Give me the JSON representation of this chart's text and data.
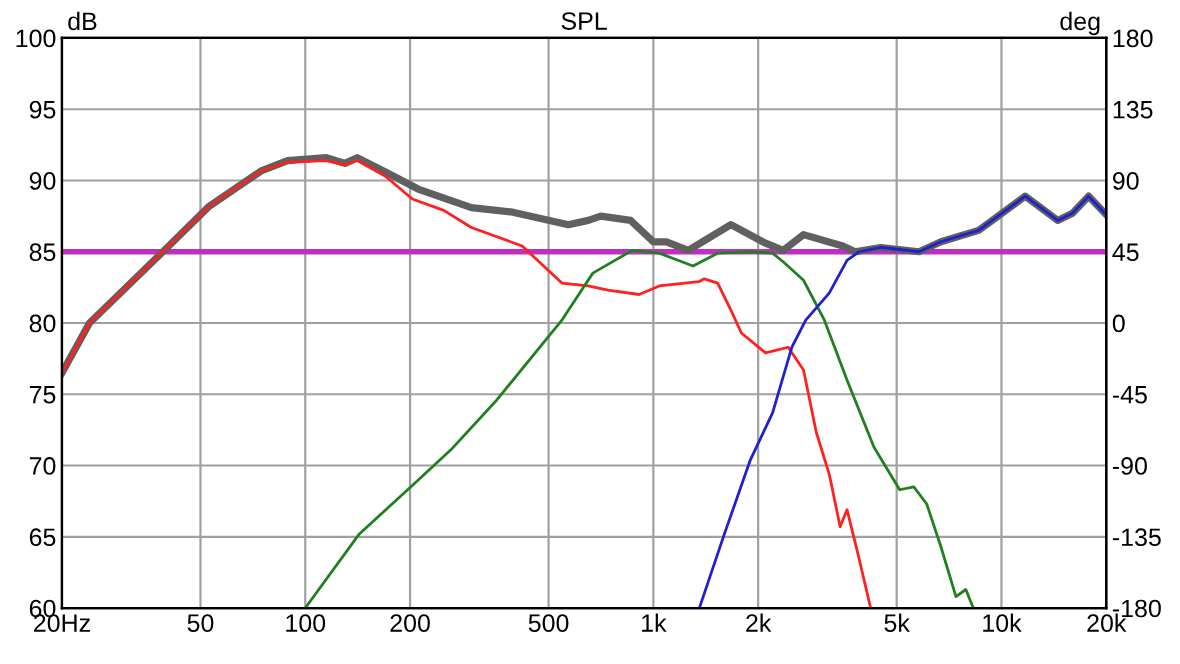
{
  "chart_data": {
    "type": "line",
    "title": "SPL",
    "ylabel": "dB",
    "y2label": "deg",
    "log": "x",
    "xlim": [
      20,
      20000
    ],
    "xticks": [
      {
        "value": 20,
        "label": "20Hz"
      },
      50,
      100,
      200,
      500,
      {
        "value": 1000,
        "label": "1k"
      },
      {
        "value": 2000,
        "label": "2k"
      },
      {
        "value": 5000,
        "label": "5k"
      },
      {
        "value": 10000,
        "label": "10k"
      },
      {
        "value": 20000,
        "label": "20k"
      }
    ],
    "ylim": [
      60,
      100
    ],
    "yticks": [
      60,
      65,
      70,
      75,
      80,
      85,
      90,
      95,
      100
    ],
    "y2lim": [
      -180,
      180
    ],
    "y2ticks": [
      -180,
      -135,
      -90,
      -45,
      0,
      45,
      90,
      135,
      180
    ],
    "grid": true,
    "ref_lines": [
      {
        "axis": "y",
        "value": 85,
        "color": "#c030c0"
      }
    ],
    "series": [
      {
        "color": "#ff2020",
        "x": [
          20,
          24,
          39,
          53,
          75,
          89,
          115,
          130,
          141,
          170,
          203,
          250,
          300,
          420,
          546,
          650,
          740,
          910,
          1040,
          1350,
          1400,
          1530,
          1670,
          1790,
          2100,
          2440,
          2700,
          2940,
          3200,
          3440,
          3600,
          3870,
          4200
        ],
        "values": [
          76.5,
          80,
          85,
          88.2,
          90.7,
          91.3,
          91.4,
          91.1,
          91.4,
          90.3,
          88.7,
          87.9,
          86.7,
          85.4,
          82.8,
          82.6,
          82.3,
          82.0,
          82.6,
          82.9,
          83.1,
          82.8,
          80.9,
          79.3,
          77.9,
          78.3,
          76.7,
          72.3,
          69.4,
          65.7,
          66.9,
          63.8,
          60.1
        ]
      },
      {
        "color": "#208020",
        "x": [
          100,
          143,
          203,
          262,
          355,
          546,
          570,
          670,
          870,
          1040,
          1300,
          1530,
          1900,
          2200,
          2360,
          2700,
          3100,
          3600,
          4300,
          5100,
          5600,
          6100,
          6700,
          7400,
          7900,
          8300
        ],
        "values": [
          60,
          65.2,
          68.6,
          71.1,
          74.6,
          80.2,
          80.9,
          83.5,
          85.1,
          84.9,
          84.0,
          84.9,
          85.0,
          84.9,
          84.3,
          83.0,
          80.2,
          76.0,
          71.3,
          68.3,
          68.5,
          67.3,
          64.3,
          60.8,
          61.3,
          60
        ]
      },
      {
        "color": "#2020d0",
        "x": [
          1360,
          1600,
          1900,
          2200,
          2500,
          2740,
          3200,
          3600,
          3900,
          4500,
          5800,
          6700,
          8600,
          11700,
          14500,
          16000,
          17800,
          20000
        ],
        "values": [
          60.1,
          65.2,
          70.4,
          73.7,
          78.3,
          80.2,
          82.1,
          84.4,
          85.0,
          85.3,
          85.0,
          85.7,
          86.5,
          88.9,
          87.2,
          87.7,
          88.9,
          87.6
        ]
      },
      {
        "color": "#606060",
        "x": [
          20,
          24,
          39,
          53,
          75,
          89,
          115,
          130,
          141,
          170,
          211,
          300,
          389,
          570,
          650,
          706,
          860,
          1000,
          1090,
          1260,
          1670,
          2100,
          2360,
          2700,
          3500,
          3800,
          4500,
          5800,
          6700,
          8600,
          11700,
          14500,
          16000,
          17800,
          20000
        ],
        "values": [
          76.5,
          80,
          85,
          88.2,
          90.7,
          91.4,
          91.6,
          91.2,
          91.6,
          90.6,
          89.4,
          88.1,
          87.8,
          86.9,
          87.2,
          87.5,
          87.2,
          85.7,
          85.7,
          85.1,
          86.9,
          85.6,
          85.1,
          86.2,
          85.4,
          85.0,
          85.3,
          85.0,
          85.7,
          86.5,
          88.9,
          87.2,
          87.7,
          88.9,
          87.6
        ]
      }
    ]
  }
}
